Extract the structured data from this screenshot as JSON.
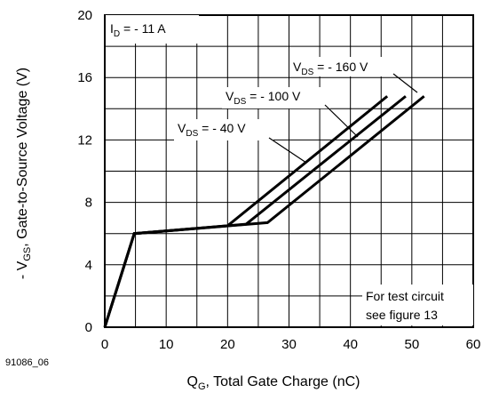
{
  "chart_data": {
    "type": "line",
    "title": "",
    "xlabel": {
      "main": "Q",
      "sub": "G",
      "rest": ", Total Gate Charge (nC)"
    },
    "ylabel": {
      "pre": "- V",
      "sub": "GS",
      "rest": ", Gate-to-Source Voltage (V)"
    },
    "xlim": [
      0,
      60
    ],
    "ylim": [
      0,
      20
    ],
    "xticks": [
      0,
      10,
      20,
      30,
      40,
      50,
      60
    ],
    "yticks": [
      0,
      4,
      8,
      12,
      16,
      20
    ],
    "grid": true,
    "series": [
      {
        "name": "V_DS = - 40 V",
        "x": [
          0,
          4.8,
          20,
          46
        ],
        "y": [
          0,
          6.0,
          6.5,
          14.8
        ]
      },
      {
        "name": "V_DS = - 100 V",
        "x": [
          0,
          4.8,
          23,
          49
        ],
        "y": [
          0,
          6.0,
          6.6,
          14.8
        ]
      },
      {
        "name": "V_DS = - 160 V",
        "x": [
          0,
          4.8,
          26.5,
          52
        ],
        "y": [
          0,
          6.0,
          6.7,
          14.8
        ]
      }
    ],
    "annotations": {
      "id_label": {
        "pre": "I",
        "sub": "D",
        "rest": " = - 11 A"
      },
      "vds_labels": [
        {
          "pre": "V",
          "sub": "DS",
          "rest": " = - 160 V"
        },
        {
          "pre": "V",
          "sub": "DS",
          "rest": " = - 100 V"
        },
        {
          "pre": "V",
          "sub": "DS",
          "rest": " = - 40 V"
        }
      ],
      "note_lines": [
        "For test circuit",
        "see figure 13"
      ],
      "figure_id": "91086_06"
    }
  }
}
